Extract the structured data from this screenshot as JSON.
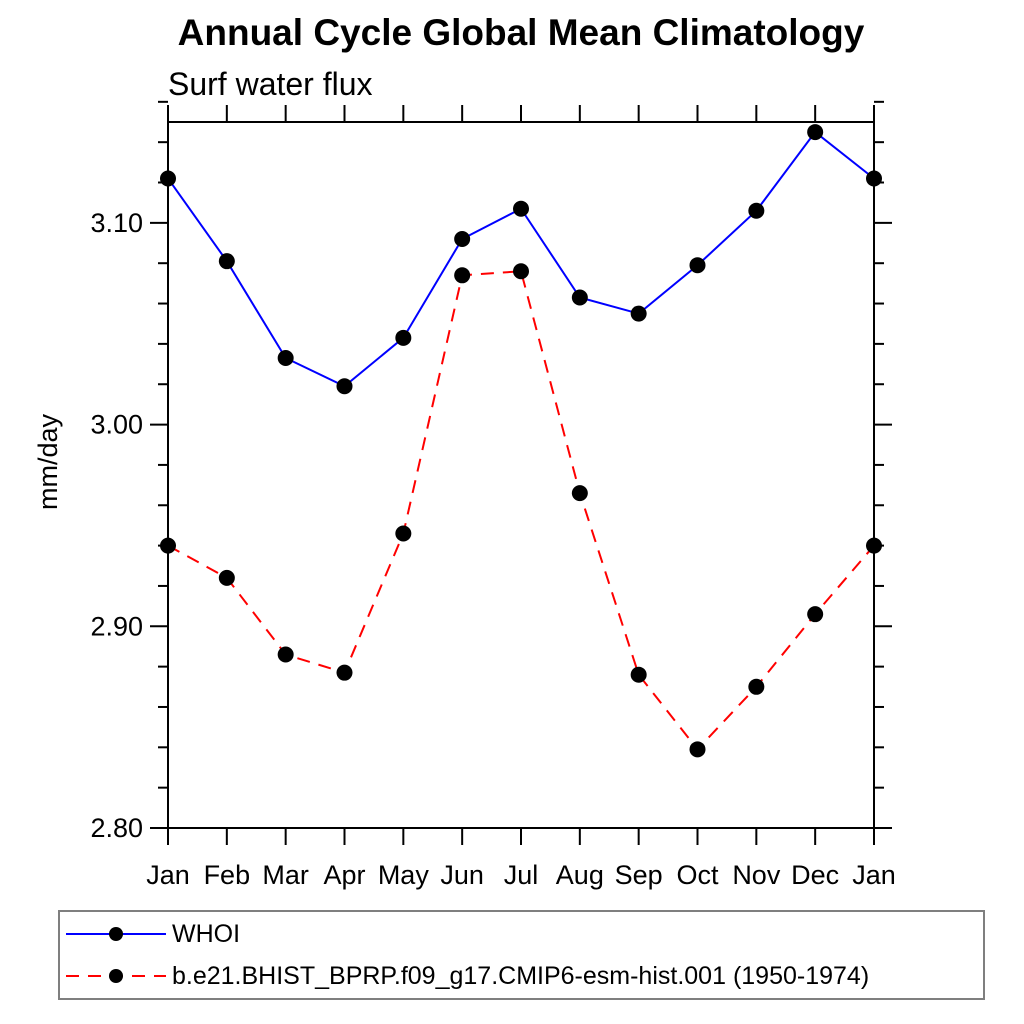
{
  "title": "Annual Cycle Global Mean Climatology",
  "subtitle": "Surf water flux",
  "chart_data": {
    "type": "line",
    "title": "Annual Cycle Global Mean Climatology",
    "subtitle": "Surf water flux",
    "xlabel": "",
    "ylabel": "mm/day",
    "categories": [
      "Jan",
      "Feb",
      "Mar",
      "Apr",
      "May",
      "Jun",
      "Jul",
      "Aug",
      "Sep",
      "Oct",
      "Nov",
      "Dec",
      "Jan"
    ],
    "series": [
      {
        "name": "WHOI",
        "color": "#0000ff",
        "line_style": "solid",
        "marker": "filled-circle",
        "marker_color": "#000000",
        "values": [
          3.122,
          3.081,
          3.033,
          3.019,
          3.043,
          3.092,
          3.107,
          3.063,
          3.055,
          3.079,
          3.106,
          3.145,
          3.122
        ]
      },
      {
        "name": "b.e21.BHIST_BPRP.f09_g17.CMIP6-esm-hist.001 (1950-1974)",
        "color": "#ff0000",
        "line_style": "dashed",
        "marker": "filled-circle",
        "marker_color": "#000000",
        "values": [
          2.94,
          2.924,
          2.886,
          2.877,
          2.946,
          3.074,
          3.076,
          2.966,
          2.876,
          2.839,
          2.87,
          2.906,
          2.94
        ]
      }
    ],
    "ylim": [
      2.8,
      3.15
    ],
    "yticks_major": [
      2.8,
      2.9,
      3.0,
      3.1
    ],
    "ytick_minor_step": 0.02,
    "ytick_label_format": "2-decimals",
    "grid": false,
    "axis_color": "#000000",
    "legend_position": "bottom-left-box",
    "legend_border_color": "#7f7f7f"
  }
}
